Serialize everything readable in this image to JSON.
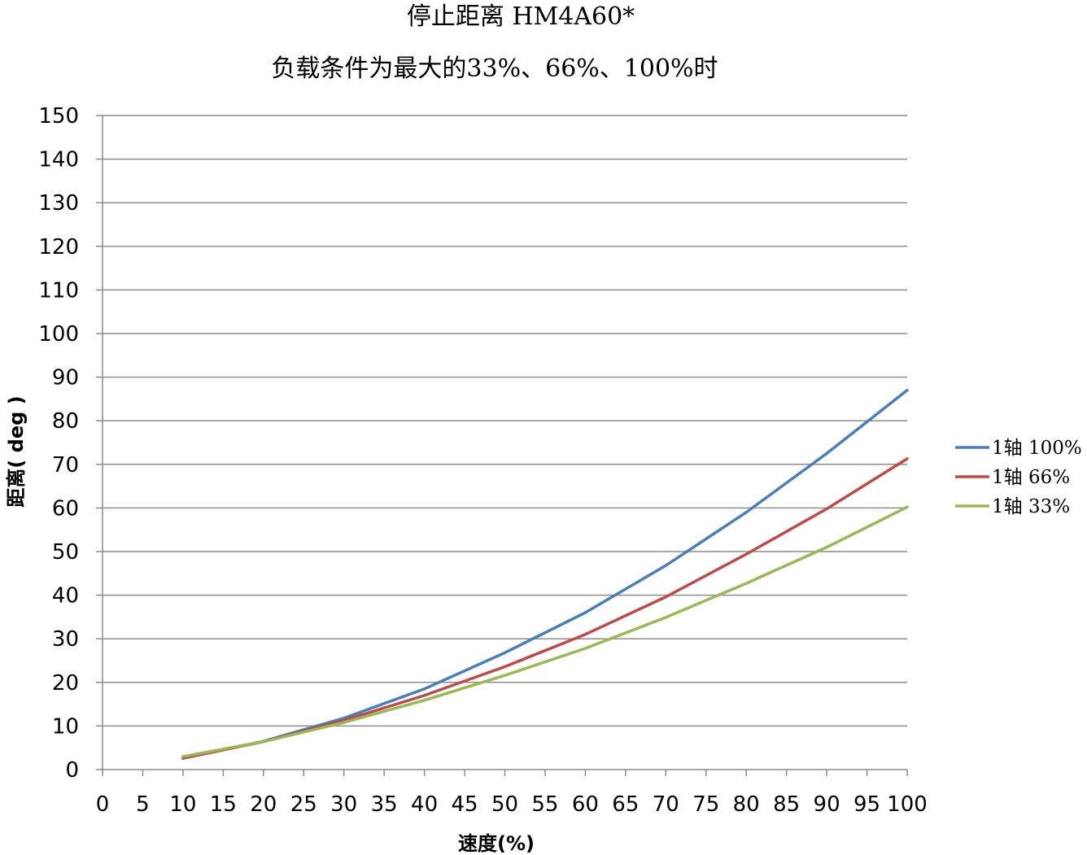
{
  "chart_data": {
    "type": "line",
    "title": "停止距离 HM4A60*",
    "subtitle": "负载条件为最大的33%、66%、100%时",
    "xlabel": "速度(%)",
    "ylabel": "距离( deg )",
    "xlim": [
      0,
      100
    ],
    "ylim": [
      0,
      150
    ],
    "x_ticks": [
      0,
      5,
      10,
      15,
      20,
      25,
      30,
      35,
      40,
      45,
      50,
      55,
      60,
      65,
      70,
      75,
      80,
      85,
      90,
      95,
      100
    ],
    "y_ticks": [
      0,
      10,
      20,
      30,
      40,
      50,
      60,
      70,
      80,
      90,
      100,
      110,
      120,
      130,
      140,
      150
    ],
    "grid": "horizontal",
    "legend_position": "right",
    "x": [
      10,
      20,
      30,
      40,
      50,
      60,
      70,
      80,
      90,
      100
    ],
    "series": [
      {
        "name": "1轴 100%",
        "color": "#4a7ebb",
        "values": [
          2.6,
          6.5,
          11.8,
          18.5,
          26.8,
          36.0,
          46.8,
          59.0,
          72.5,
          87.0
        ]
      },
      {
        "name": "1轴 66%",
        "color": "#be4b48",
        "values": [
          2.6,
          6.4,
          11.3,
          17.0,
          23.6,
          31.0,
          39.6,
          49.4,
          59.8,
          71.3
        ]
      },
      {
        "name": "1轴 33%",
        "color": "#98b954",
        "values": [
          3.0,
          6.4,
          10.8,
          15.9,
          21.6,
          27.8,
          34.9,
          42.7,
          51.0,
          60.2
        ]
      }
    ]
  }
}
